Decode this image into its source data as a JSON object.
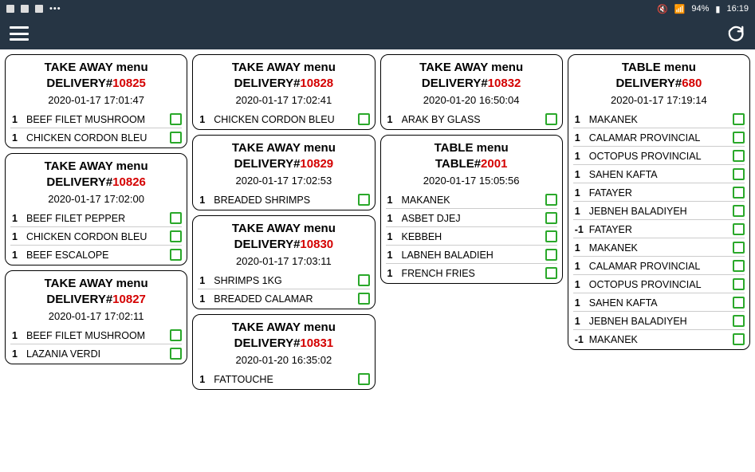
{
  "status": {
    "battery": "94%",
    "time": "16:19"
  },
  "columns": [
    [
      {
        "menu": "TAKE AWAY menu",
        "ref_label": "DELIVERY#",
        "ref_num": "10825",
        "ts": "2020-01-17 17:01:47",
        "items": [
          {
            "qty": "1",
            "name": "BEEF FILET MUSHROOM"
          },
          {
            "qty": "1",
            "name": "CHICKEN CORDON BLEU"
          }
        ]
      },
      {
        "menu": "TAKE AWAY menu",
        "ref_label": "DELIVERY#",
        "ref_num": "10826",
        "ts": "2020-01-17 17:02:00",
        "items": [
          {
            "qty": "1",
            "name": "BEEF FILET PEPPER"
          },
          {
            "qty": "1",
            "name": "CHICKEN CORDON BLEU"
          },
          {
            "qty": "1",
            "name": "BEEF ESCALOPE"
          }
        ]
      },
      {
        "menu": "TAKE AWAY menu",
        "ref_label": "DELIVERY#",
        "ref_num": "10827",
        "ts": "2020-01-17 17:02:11",
        "items": [
          {
            "qty": "1",
            "name": "BEEF FILET MUSHROOM"
          },
          {
            "qty": "1",
            "name": "LAZANIA VERDI"
          }
        ]
      }
    ],
    [
      {
        "menu": "TAKE AWAY menu",
        "ref_label": "DELIVERY#",
        "ref_num": "10828",
        "ts": "2020-01-17 17:02:41",
        "items": [
          {
            "qty": "1",
            "name": "CHICKEN CORDON BLEU"
          }
        ]
      },
      {
        "menu": "TAKE AWAY menu",
        "ref_label": "DELIVERY#",
        "ref_num": "10829",
        "ts": "2020-01-17 17:02:53",
        "items": [
          {
            "qty": "1",
            "name": "BREADED SHRIMPS"
          }
        ]
      },
      {
        "menu": "TAKE AWAY menu",
        "ref_label": "DELIVERY#",
        "ref_num": "10830",
        "ts": "2020-01-17 17:03:11",
        "items": [
          {
            "qty": "1",
            "name": "SHRIMPS 1KG"
          },
          {
            "qty": "1",
            "name": "BREADED CALAMAR"
          }
        ]
      },
      {
        "menu": "TAKE AWAY menu",
        "ref_label": "DELIVERY#",
        "ref_num": "10831",
        "ts": "2020-01-20 16:35:02",
        "items": [
          {
            "qty": "1",
            "name": "FATTOUCHE"
          }
        ]
      }
    ],
    [
      {
        "menu": "TAKE AWAY menu",
        "ref_label": "DELIVERY#",
        "ref_num": "10832",
        "ts": "2020-01-20 16:50:04",
        "items": [
          {
            "qty": "1",
            "name": "ARAK BY GLASS"
          }
        ]
      },
      {
        "menu": "TABLE menu",
        "ref_label": "TABLE#",
        "ref_num": "2001",
        "ts": "2020-01-17 15:05:56",
        "items": [
          {
            "qty": "1",
            "name": "MAKANEK"
          },
          {
            "qty": "1",
            "name": "ASBET DJEJ"
          },
          {
            "qty": "1",
            "name": "KEBBEH"
          },
          {
            "qty": "1",
            "name": "LABNEH BALADIEH"
          },
          {
            "qty": "1",
            "name": "FRENCH FRIES"
          }
        ]
      }
    ],
    [
      {
        "menu": "TABLE menu",
        "ref_label": "DELIVERY#",
        "ref_num": "680",
        "ts": "2020-01-17 17:19:14",
        "items": [
          {
            "qty": "1",
            "name": "MAKANEK"
          },
          {
            "qty": "1",
            "name": "CALAMAR PROVINCIAL"
          },
          {
            "qty": "1",
            "name": "OCTOPUS PROVINCIAL"
          },
          {
            "qty": "1",
            "name": "SAHEN KAFTA"
          },
          {
            "qty": "1",
            "name": "FATAYER"
          },
          {
            "qty": "1",
            "name": "JEBNEH BALADIYEH"
          },
          {
            "qty": "-1",
            "name": "FATAYER"
          },
          {
            "qty": "1",
            "name": "MAKANEK"
          },
          {
            "qty": "1",
            "name": "CALAMAR PROVINCIAL"
          },
          {
            "qty": "1",
            "name": "OCTOPUS PROVINCIAL"
          },
          {
            "qty": "1",
            "name": "SAHEN KAFTA"
          },
          {
            "qty": "1",
            "name": "JEBNEH BALADIYEH"
          },
          {
            "qty": "-1",
            "name": "MAKANEK"
          }
        ]
      }
    ]
  ]
}
